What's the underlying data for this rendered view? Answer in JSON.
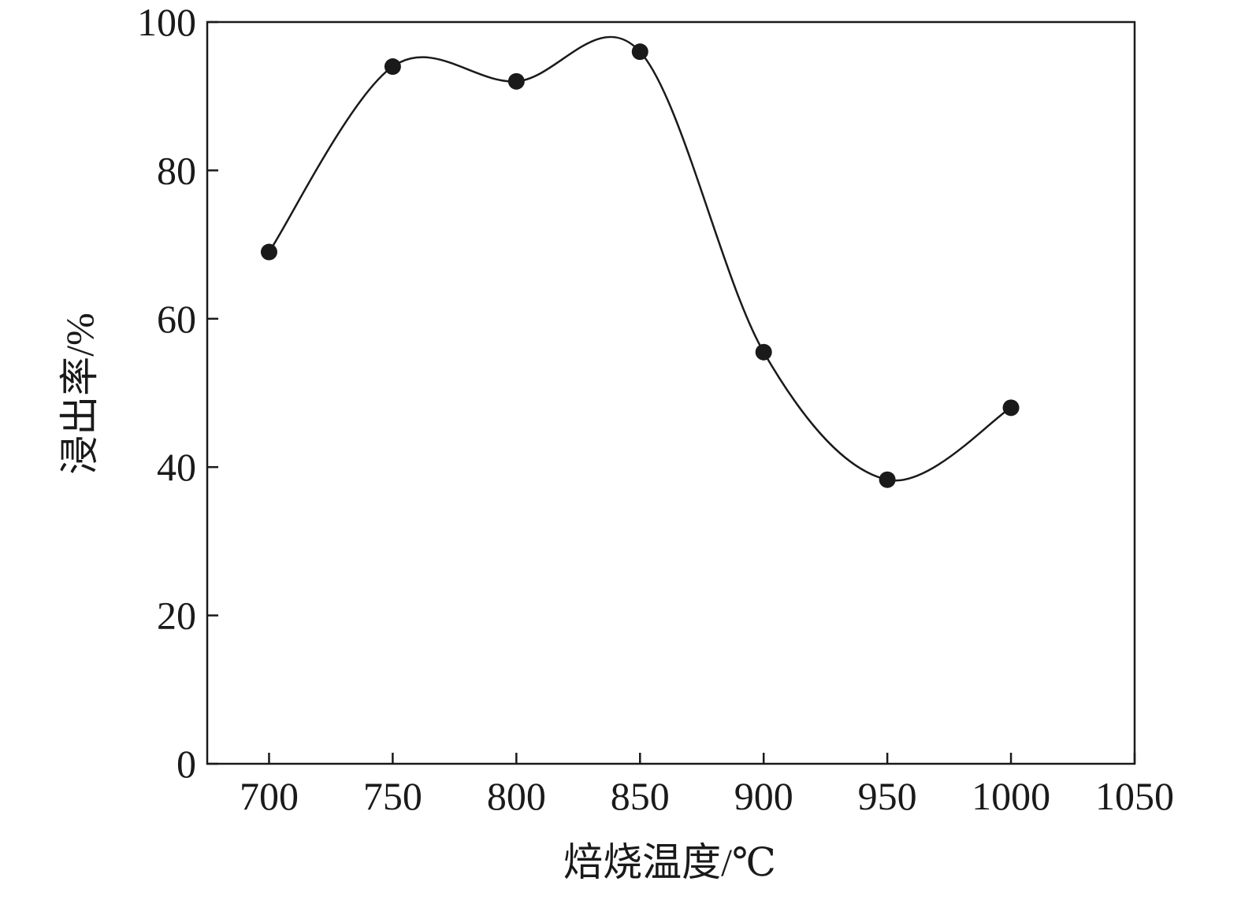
{
  "chart_data": {
    "type": "line",
    "title": "",
    "xlabel": "焙烧温度/℃",
    "ylabel": "浸出率/%",
    "x": [
      700,
      750,
      800,
      850,
      900,
      950,
      1000
    ],
    "series": [
      {
        "values": [
          69,
          94,
          92,
          96,
          55.5,
          38.3,
          48
        ]
      }
    ],
    "xlim": [
      675,
      1050
    ],
    "ylim": [
      0,
      100
    ],
    "xticks": [
      "700",
      "750",
      "800",
      "850",
      "900",
      "950",
      "1000",
      "1050"
    ],
    "yticks": [
      "0",
      "20",
      "40",
      "60",
      "80",
      "100"
    ],
    "grid": false,
    "legend": "none",
    "smooth": true,
    "colors": {
      "line": "#1a1a1a",
      "marker": "#1a1a1a",
      "axis": "#1a1a1a"
    }
  }
}
